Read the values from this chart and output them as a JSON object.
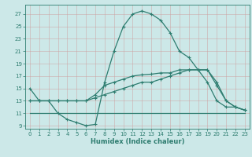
{
  "xlabel": "Humidex (Indice chaleur)",
  "background_color": "#cce8e8",
  "grid_color": "#aacccc",
  "line_color": "#2e7d70",
  "xlim": [
    -0.5,
    23.5
  ],
  "ylim": [
    8.5,
    28.5
  ],
  "yticks": [
    9,
    11,
    13,
    15,
    17,
    19,
    21,
    23,
    25,
    27
  ],
  "xticks": [
    0,
    1,
    2,
    3,
    4,
    5,
    6,
    7,
    8,
    9,
    10,
    11,
    12,
    13,
    14,
    15,
    16,
    17,
    18,
    19,
    20,
    21,
    22,
    23
  ],
  "curve1_x": [
    0,
    1,
    2,
    3,
    4,
    5,
    6,
    7,
    8,
    9,
    10,
    11,
    12,
    13,
    14,
    15,
    16,
    17,
    18,
    19,
    20,
    21,
    22,
    23
  ],
  "curve1_y": [
    15,
    13,
    13,
    11,
    10,
    9.5,
    9,
    9.2,
    16,
    21,
    25,
    27,
    27.5,
    27,
    26,
    24,
    21,
    20,
    18,
    16,
    13,
    12,
    12,
    11.5
  ],
  "curve2_x": [
    0,
    1,
    2,
    3,
    4,
    5,
    6,
    7,
    8,
    9,
    10,
    11,
    12,
    13,
    14,
    15,
    16,
    17,
    18,
    19,
    20,
    21,
    22,
    23
  ],
  "curve2_y": [
    13,
    13,
    13,
    13,
    13,
    13,
    13,
    14,
    15.5,
    16,
    16.5,
    17,
    17.2,
    17.3,
    17.5,
    17.5,
    18,
    18,
    18,
    18,
    16,
    13,
    12,
    11.5
  ],
  "curve3_x": [
    0,
    23
  ],
  "curve3_y": [
    11,
    11
  ],
  "curve4_x": [
    0,
    1,
    2,
    3,
    4,
    5,
    6,
    7,
    8,
    9,
    10,
    11,
    12,
    13,
    14,
    15,
    16,
    17,
    18,
    19,
    20,
    21,
    22,
    23
  ],
  "curve4_y": [
    13,
    13,
    13,
    13,
    13,
    13,
    13,
    13.5,
    14,
    14.5,
    15,
    15.5,
    16,
    16,
    16.5,
    17,
    17.5,
    18,
    18,
    18,
    15.5,
    13,
    12,
    11.5
  ],
  "markersize": 3.5,
  "linewidth": 0.9
}
